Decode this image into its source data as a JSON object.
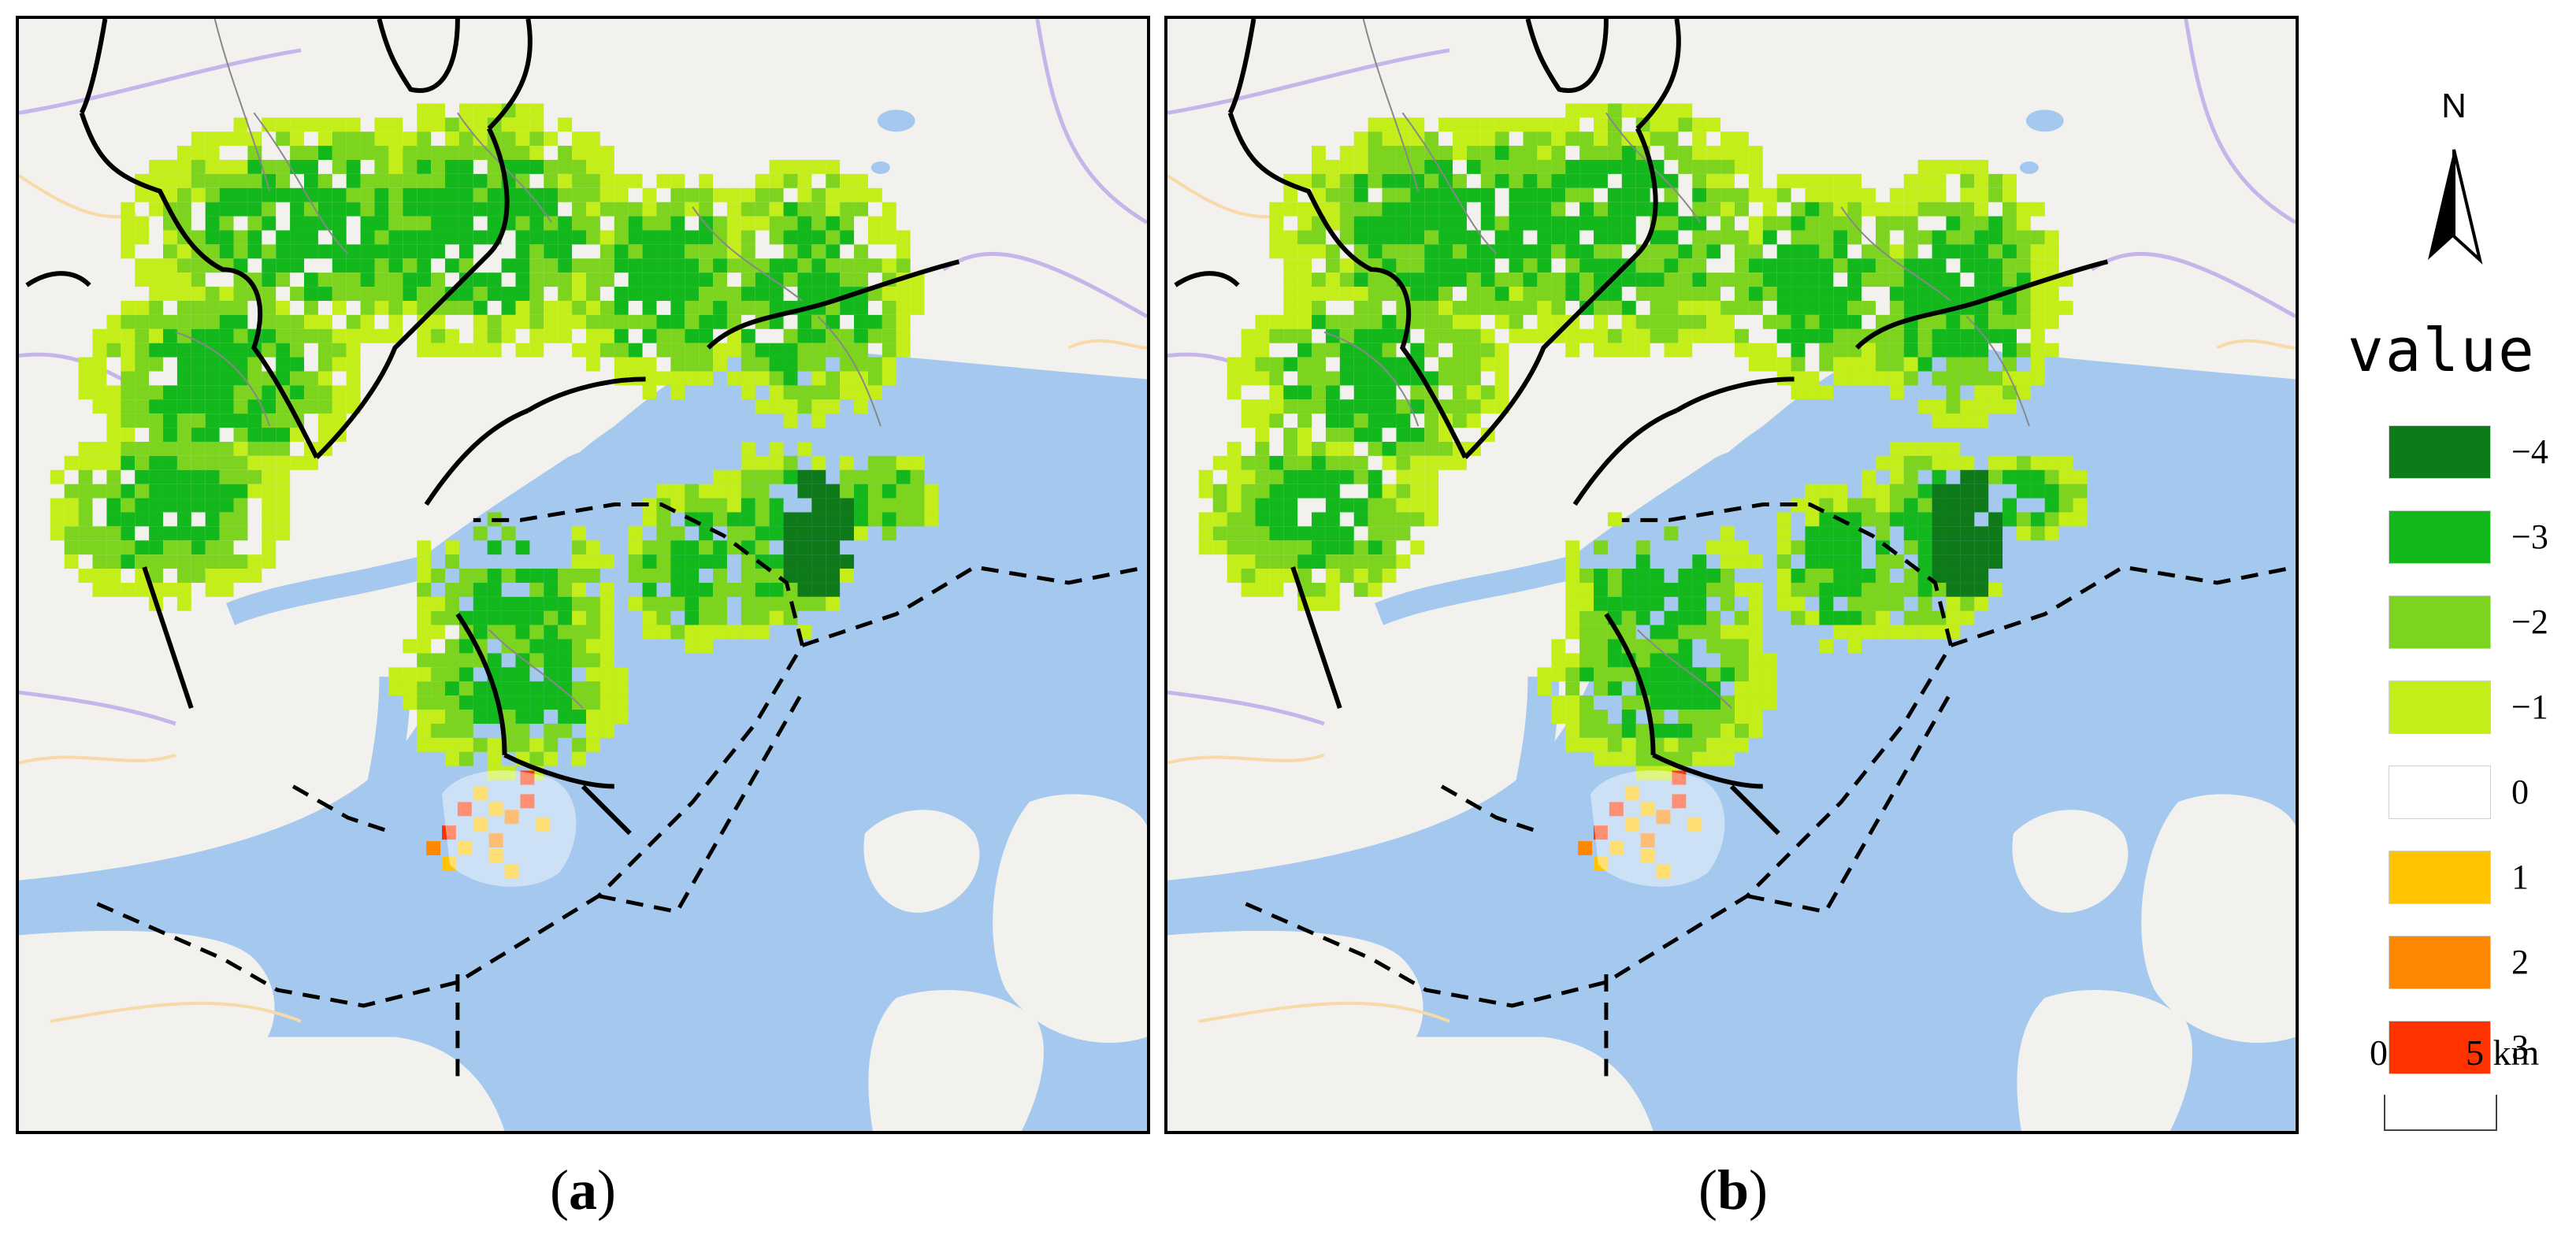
{
  "panels": [
    {
      "id": "a",
      "caption_letter": "a",
      "variant": 0
    },
    {
      "id": "b",
      "caption_letter": "b",
      "variant": 1
    }
  ],
  "legend": {
    "north_label": "N",
    "title": "value",
    "classes": [
      {
        "value": -4,
        "label": "−4",
        "color": "#0f7a1a"
      },
      {
        "value": -3,
        "label": "−3",
        "color": "#12b81c"
      },
      {
        "value": -2,
        "label": "−2",
        "color": "#7cd41e"
      },
      {
        "value": -1,
        "label": "−1",
        "color": "#c4ee1a"
      },
      {
        "value": 0,
        "label": "0",
        "color": "#ffffff"
      },
      {
        "value": 1,
        "label": "1",
        "color": "#ffc300"
      },
      {
        "value": 2,
        "label": "2",
        "color": "#ff8800"
      },
      {
        "value": 3,
        "label": "3",
        "color": "#ff3300"
      }
    ]
  },
  "scale_bar": {
    "start_label": "0",
    "end_label": "5 km"
  },
  "colors": {
    "water": "#a4c8ee",
    "land": "#f2f1ed",
    "boundary": "#000000",
    "roads_purple": "#b9a6e6",
    "roads_orange": "#f8d9a8"
  }
}
